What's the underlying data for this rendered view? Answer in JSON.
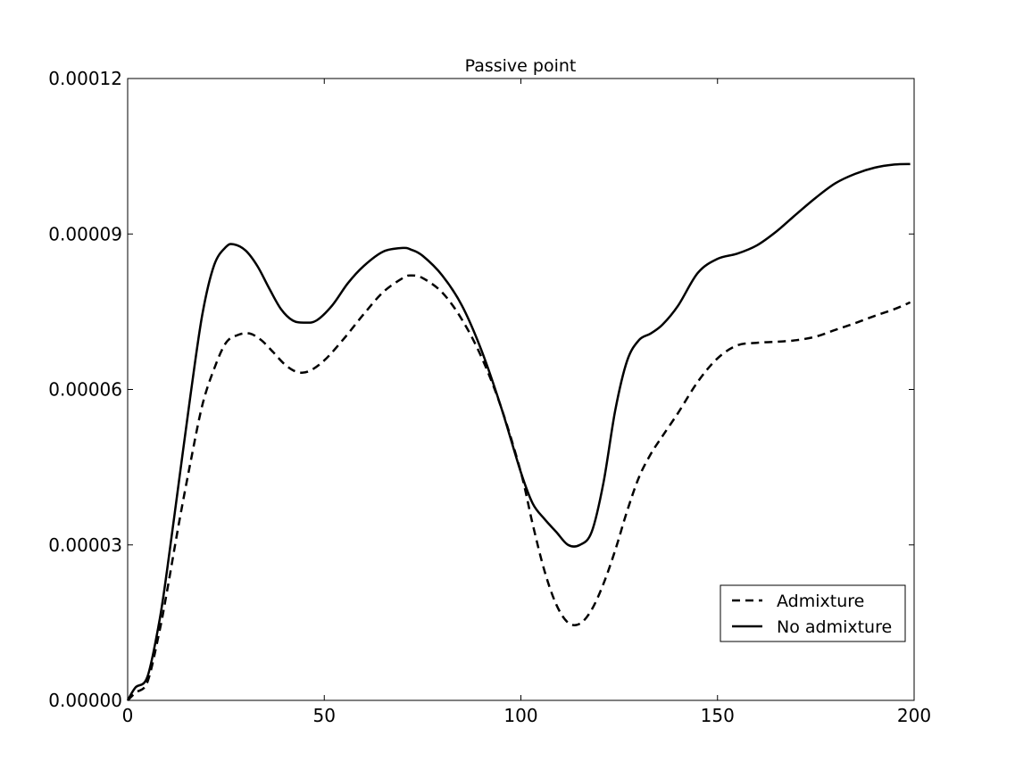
{
  "chart_data": {
    "type": "line",
    "title": "Passive point",
    "xlabel": "",
    "ylabel": "",
    "xlim": [
      0,
      200
    ],
    "ylim": [
      0,
      0.00012
    ],
    "xticks": [
      "0",
      "50",
      "100",
      "150",
      "200"
    ],
    "yticks": [
      "0.00000",
      "0.00003",
      "0.00006",
      "0.00009",
      "0.00012"
    ],
    "grid": false,
    "legend_position": "lower-right",
    "series": [
      {
        "name": "Admixture",
        "style": "dashed",
        "color": "#000000",
        "x": [
          0,
          2,
          5,
          8,
          10,
          13,
          16,
          19,
          22,
          25,
          28,
          31,
          34,
          37,
          40,
          43,
          46,
          50,
          55,
          60,
          65,
          70,
          72,
          75,
          80,
          85,
          90,
          95,
          100,
          103,
          106,
          109,
          112,
          115,
          118,
          121,
          124,
          127,
          130,
          133,
          136,
          140,
          145,
          150,
          155,
          160,
          165,
          170,
          175,
          180,
          185,
          190,
          195,
          199
        ],
        "y": [
          0.0,
          1.5e-06,
          3.5e-06,
          1.3e-05,
          2.1e-05,
          3.4e-05,
          4.6e-05,
          5.7e-05,
          6.4e-05,
          6.9e-05,
          7.05e-05,
          7.08e-05,
          6.95e-05,
          6.72e-05,
          6.48e-05,
          6.34e-05,
          6.35e-05,
          6.56e-05,
          6.98e-05,
          7.45e-05,
          7.88e-05,
          8.15e-05,
          8.2e-05,
          8.15e-05,
          7.87e-05,
          7.35e-05,
          6.62e-05,
          5.65e-05,
          4.4e-05,
          3.4e-05,
          2.5e-05,
          1.85e-05,
          1.5e-05,
          1.48e-05,
          1.75e-05,
          2.25e-05,
          2.9e-05,
          3.65e-05,
          4.3e-05,
          4.75e-05,
          5.1e-05,
          5.55e-05,
          6.15e-05,
          6.6e-05,
          6.85e-05,
          6.9e-05,
          6.92e-05,
          6.95e-05,
          7.02e-05,
          7.15e-05,
          7.28e-05,
          7.42e-05,
          7.55e-05,
          7.68e-05
        ]
      },
      {
        "name": "No admixture",
        "style": "solid",
        "color": "#000000",
        "x": [
          0,
          2,
          5,
          8,
          10,
          13,
          16,
          19,
          22,
          25,
          27,
          30,
          33,
          36,
          39,
          42,
          45,
          48,
          52,
          56,
          60,
          65,
          70,
          72,
          75,
          80,
          85,
          90,
          95,
          100,
          103,
          106,
          109,
          112,
          115,
          118,
          121,
          124,
          127,
          130,
          133,
          136,
          140,
          145,
          150,
          155,
          160,
          165,
          170,
          175,
          180,
          185,
          190,
          195,
          199
        ],
        "y": [
          0.0,
          2.5e-06,
          4.5e-06,
          1.5e-05,
          2.5e-05,
          4.2e-05,
          5.9e-05,
          7.45e-05,
          8.4e-05,
          8.75e-05,
          8.8e-05,
          8.68e-05,
          8.38e-05,
          7.95e-05,
          7.55e-05,
          7.33e-05,
          7.29e-05,
          7.33e-05,
          7.62e-05,
          8.05e-05,
          8.38e-05,
          8.66e-05,
          8.73e-05,
          8.7e-05,
          8.58e-05,
          8.2e-05,
          7.62e-05,
          6.75e-05,
          5.65e-05,
          4.4e-05,
          3.8e-05,
          3.5e-05,
          3.25e-05,
          3e-05,
          3e-05,
          3.25e-05,
          4.2e-05,
          5.6e-05,
          6.55e-05,
          6.95e-05,
          7.08e-05,
          7.25e-05,
          7.62e-05,
          8.25e-05,
          8.52e-05,
          8.62e-05,
          8.78e-05,
          9.05e-05,
          9.38e-05,
          9.7e-05,
          9.98e-05,
          0.0001016,
          0.0001028,
          0.0001034,
          0.0001035
        ]
      }
    ]
  }
}
